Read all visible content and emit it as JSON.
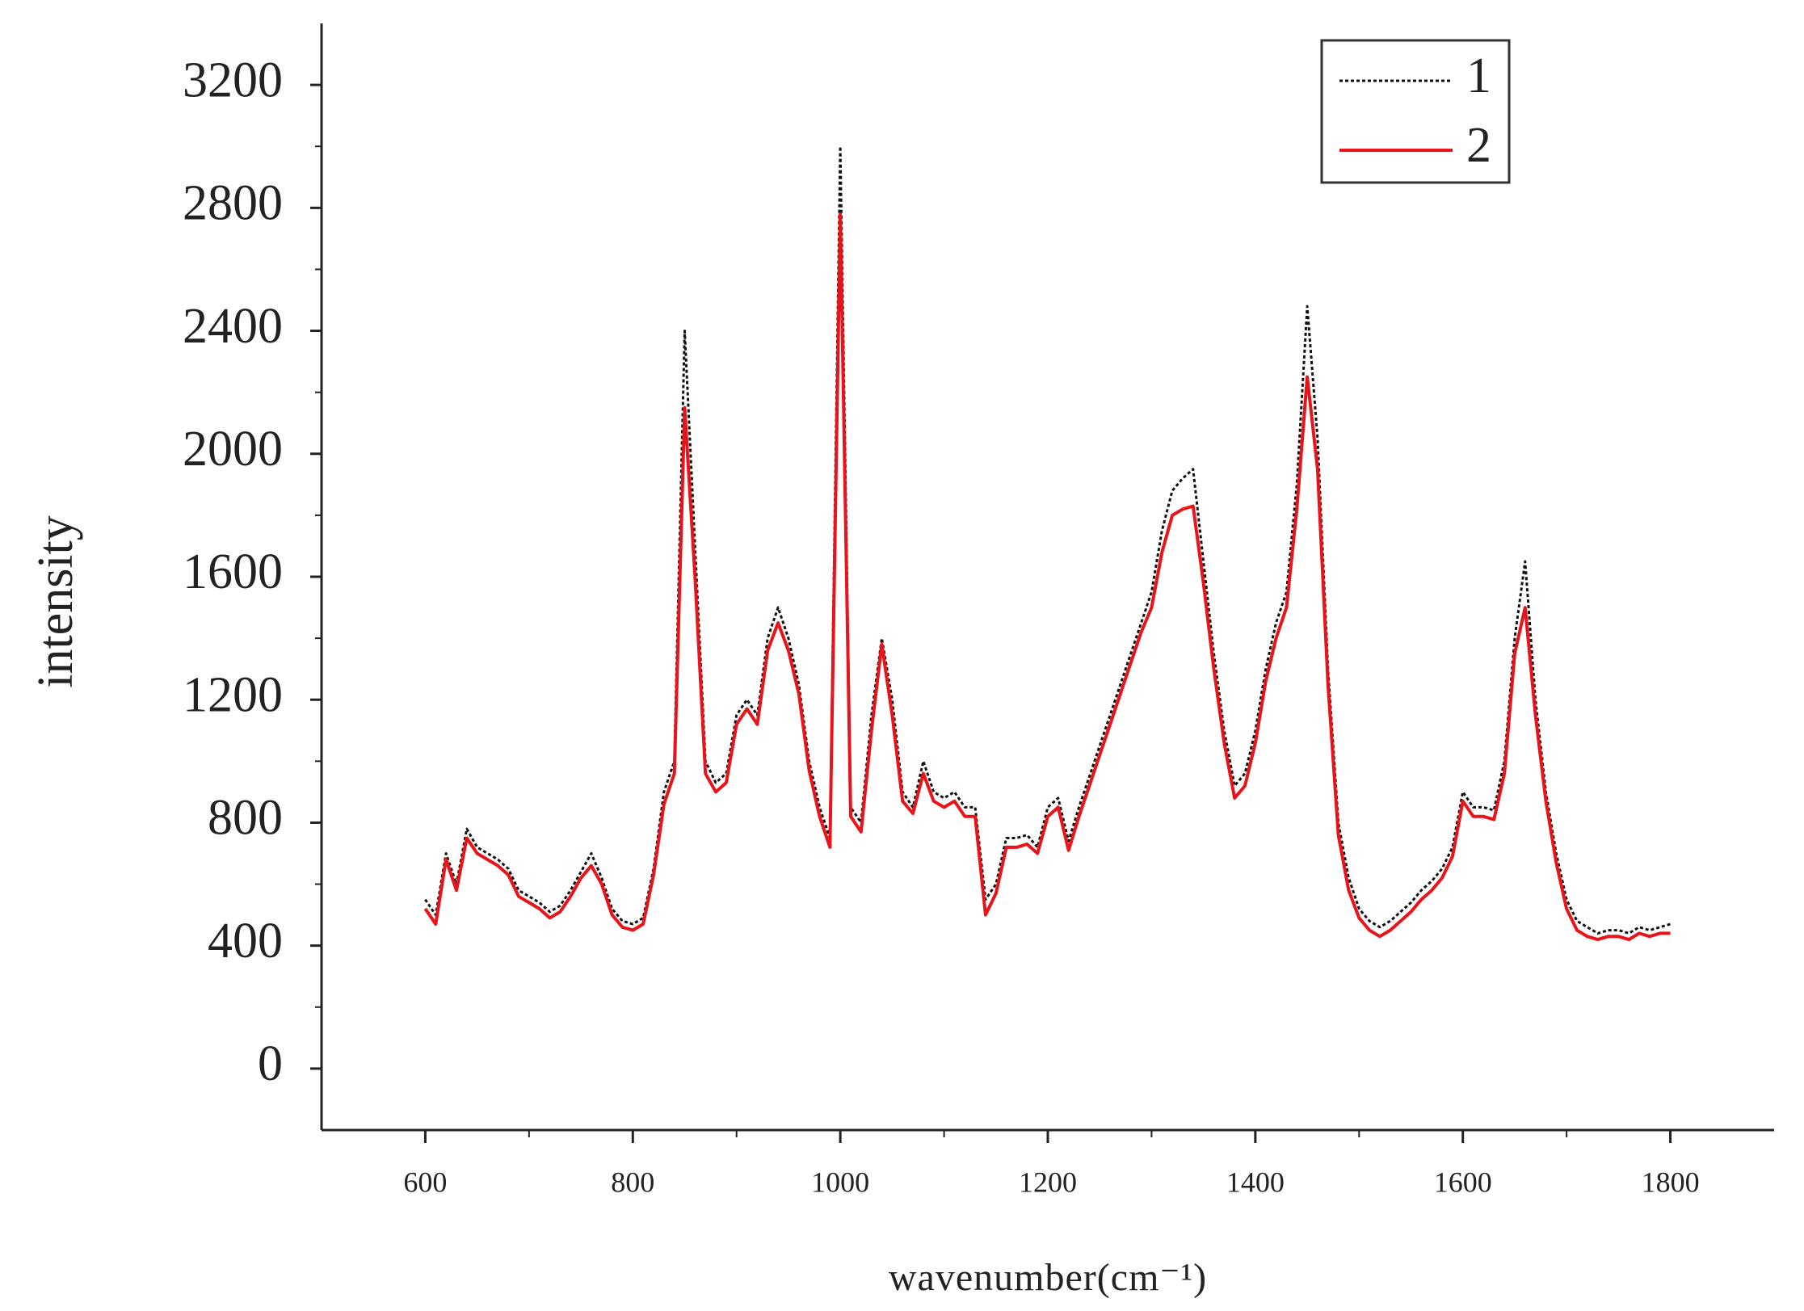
{
  "chart_data": {
    "type": "line",
    "x_label": "wavenumber(cm⁻¹)",
    "y_label": "intensity",
    "xlim": [
      500,
      1900
    ],
    "xticks": [
      600,
      800,
      1000,
      1200,
      1400,
      1600,
      1800
    ],
    "ylim": [
      -200,
      3400
    ],
    "yticks": [
      0,
      400,
      800,
      1200,
      1600,
      2000,
      2400,
      2800,
      3200
    ],
    "legend": "upper right",
    "x": [
      600,
      610,
      620,
      630,
      640,
      650,
      660,
      670,
      680,
      690,
      700,
      710,
      720,
      730,
      740,
      750,
      760,
      770,
      780,
      790,
      800,
      810,
      820,
      830,
      840,
      850,
      860,
      870,
      880,
      890,
      900,
      910,
      920,
      930,
      940,
      950,
      960,
      970,
      980,
      990,
      1000,
      1010,
      1020,
      1030,
      1040,
      1050,
      1060,
      1070,
      1080,
      1090,
      1100,
      1110,
      1120,
      1130,
      1140,
      1150,
      1160,
      1170,
      1180,
      1190,
      1200,
      1210,
      1220,
      1230,
      1240,
      1250,
      1260,
      1270,
      1280,
      1290,
      1300,
      1310,
      1320,
      1330,
      1340,
      1350,
      1360,
      1370,
      1380,
      1390,
      1400,
      1410,
      1420,
      1430,
      1440,
      1450,
      1460,
      1470,
      1480,
      1490,
      1500,
      1510,
      1520,
      1530,
      1540,
      1550,
      1560,
      1570,
      1580,
      1590,
      1600,
      1610,
      1620,
      1630,
      1640,
      1650,
      1660,
      1670,
      1680,
      1690,
      1700,
      1710,
      1720,
      1730,
      1740,
      1750,
      1760,
      1770,
      1780,
      1790,
      1800
    ],
    "series": [
      {
        "name": "1",
        "color": "#111111",
        "dash": true,
        "values": [
          550,
          500,
          700,
          600,
          780,
          720,
          700,
          680,
          650,
          580,
          560,
          540,
          510,
          530,
          580,
          640,
          700,
          620,
          520,
          480,
          470,
          490,
          650,
          900,
          1000,
          2400,
          1700,
          1000,
          930,
          960,
          1150,
          1200,
          1150,
          1400,
          1500,
          1400,
          1250,
          1000,
          850,
          750,
          3000,
          850,
          800,
          1150,
          1400,
          1200,
          900,
          850,
          1000,
          900,
          880,
          900,
          850,
          850,
          550,
          600,
          750,
          750,
          760,
          720,
          850,
          880,
          740,
          850,
          950,
          1050,
          1150,
          1250,
          1350,
          1450,
          1550,
          1750,
          1880,
          1920,
          1950,
          1650,
          1350,
          1100,
          920,
          960,
          1100,
          1300,
          1450,
          1550,
          1900,
          2480,
          2050,
          1300,
          800,
          620,
          520,
          480,
          460,
          480,
          510,
          540,
          580,
          610,
          650,
          720,
          900,
          850,
          850,
          840,
          1000,
          1400,
          1650,
          1200,
          900,
          700,
          550,
          480,
          460,
          440,
          450,
          450,
          440,
          460,
          450,
          460,
          470
        ]
      },
      {
        "name": "2",
        "color": "#e8141a",
        "dash": false,
        "values": [
          520,
          470,
          680,
          580,
          750,
          700,
          680,
          660,
          630,
          560,
          540,
          520,
          490,
          510,
          560,
          620,
          660,
          600,
          500,
          460,
          450,
          470,
          630,
          860,
          960,
          2150,
          1600,
          960,
          900,
          930,
          1120,
          1170,
          1120,
          1360,
          1450,
          1360,
          1220,
          970,
          820,
          720,
          2780,
          820,
          770,
          1100,
          1380,
          1150,
          870,
          830,
          960,
          870,
          850,
          870,
          820,
          820,
          500,
          570,
          720,
          720,
          730,
          700,
          820,
          850,
          710,
          820,
          920,
          1020,
          1120,
          1220,
          1320,
          1420,
          1500,
          1680,
          1800,
          1820,
          1830,
          1580,
          1300,
          1060,
          880,
          920,
          1060,
          1260,
          1400,
          1500,
          1820,
          2250,
          1950,
          1250,
          760,
          580,
          490,
          450,
          430,
          450,
          480,
          510,
          550,
          580,
          620,
          690,
          870,
          820,
          820,
          810,
          960,
          1350,
          1500,
          1150,
          870,
          670,
          520,
          450,
          430,
          420,
          430,
          430,
          420,
          440,
          430,
          440,
          440
        ]
      }
    ]
  }
}
